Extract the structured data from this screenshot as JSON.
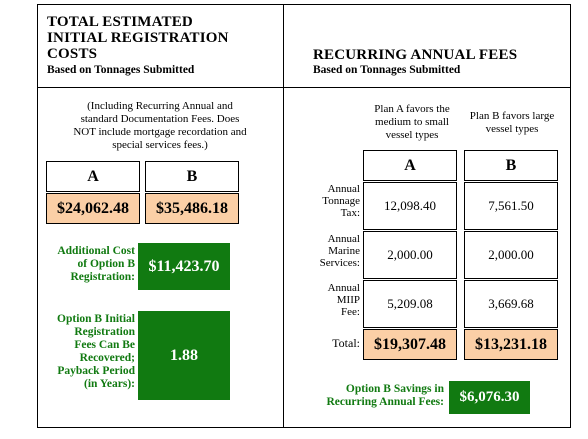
{
  "left": {
    "title_lines": [
      "TOTAL ESTIMATED",
      "INITIAL REGISTRATION",
      "COSTS"
    ],
    "subtitle": "Based on Tonnages Submitted",
    "note_lines": [
      "(Including Recurring Annual and",
      "standard Documentation Fees. Does",
      "NOT include mortgage recordation and",
      "special services fees.)"
    ],
    "col_a": "A",
    "col_b": "B",
    "total_a": "$24,062.48",
    "total_b": "$35,486.18",
    "additional_label_lines": [
      "Additional Cost",
      "of Option B",
      "Registration:"
    ],
    "additional_value": "$11,423.70",
    "payback_label_lines": [
      "Option B Initial",
      "Registration",
      "Fees Can Be",
      "Recovered;",
      "Payback Period",
      "(in Years):"
    ],
    "payback_value": "1.88"
  },
  "right": {
    "title": "RECURRING ANNUAL FEES",
    "subtitle": "Based on Tonnages Submitted",
    "plan_a_lines": [
      "Plan A favors the",
      "medium to small",
      "vessel types"
    ],
    "plan_b_lines": [
      "Plan B favors large",
      "vessel types"
    ],
    "col_a": "A",
    "col_b": "B",
    "rows": [
      {
        "label_lines": [
          "Annual",
          "Tonnage",
          "Tax:"
        ],
        "a": "12,098.40",
        "b": "7,561.50"
      },
      {
        "label_lines": [
          "Annual",
          "Marine",
          "Services:"
        ],
        "a": "2,000.00",
        "b": "2,000.00"
      },
      {
        "label_lines": [
          "Annual",
          "MIIP",
          "Fee:"
        ],
        "a": "5,209.08",
        "b": "3,669.68"
      }
    ],
    "total_label": "Total:",
    "total_a": "$19,307.48",
    "total_b": "$13,231.18",
    "savings_label_lines": [
      "Option B Savings in",
      "Recurring Annual Fees:"
    ],
    "savings_value": "$6,076.30"
  },
  "colors": {
    "green": "#117a11",
    "peach": "#fbcfa6"
  }
}
